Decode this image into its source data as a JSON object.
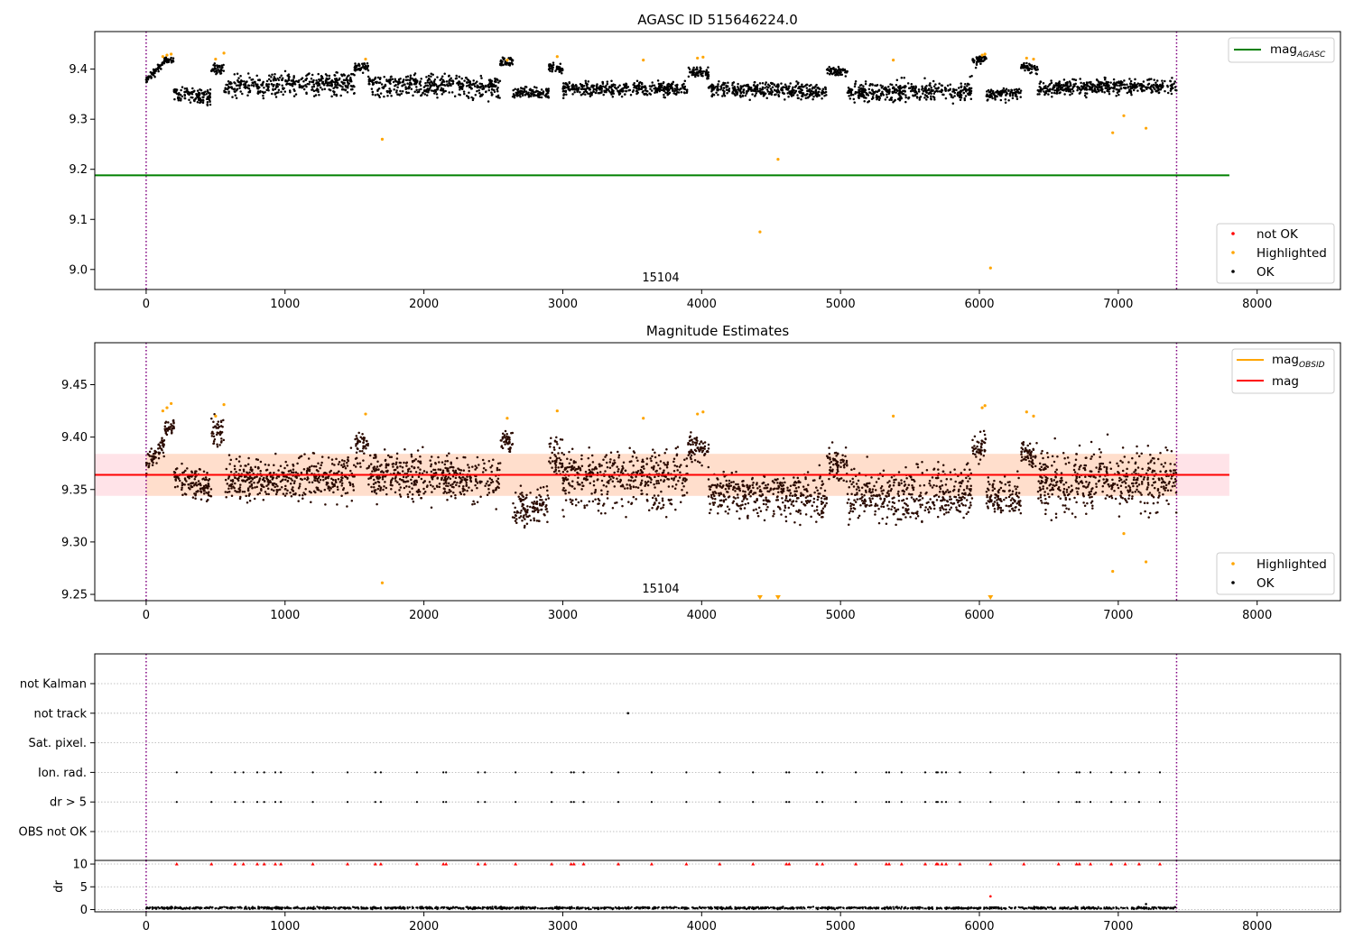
{
  "chart_data": [
    {
      "id": "agasc",
      "type": "scatter",
      "title": "AGASC ID 515646224.0",
      "xlabel": "",
      "ylabel": "",
      "xlim": [
        -370,
        8600
      ],
      "ylim": [
        8.96,
        9.475
      ],
      "x_ticks": [
        0,
        1000,
        2000,
        3000,
        4000,
        5000,
        6000,
        7000,
        8000
      ],
      "y_ticks": [
        9.0,
        9.1,
        9.2,
        9.3,
        9.4
      ],
      "y_tick_labels": [
        "9.0",
        "9.1",
        "9.2",
        "9.3",
        "9.4"
      ],
      "vlines": [
        0,
        7420
      ],
      "hline": {
        "name": "mag",
        "sub": "AGASC",
        "y": 9.188,
        "x_range": [
          -370,
          7800
        ],
        "color": "#008000"
      },
      "annotation": {
        "text": "15104",
        "x": 3700,
        "y": 8.972
      },
      "legend_top": {
        "position": "top-right",
        "entries": [
          {
            "label": "mag",
            "sub": "AGASC",
            "color": "#008000",
            "marker": "line"
          }
        ]
      },
      "legend_bottom": {
        "position": "bottom-right",
        "entries": [
          {
            "label": "not OK",
            "color": "#ff0000",
            "marker": "dot"
          },
          {
            "label": "Highlighted",
            "color": "#ffa500",
            "marker": "dot"
          },
          {
            "label": "OK",
            "color": "#000000",
            "marker": "dot"
          }
        ]
      },
      "segments": [
        {
          "x": [
            0,
            130
          ],
          "y": [
            9.375,
            9.41
          ],
          "spread": 0.02
        },
        {
          "x": [
            130,
            200
          ],
          "y": [
            9.42,
            9.42
          ],
          "spread": 0.01
        },
        {
          "x": [
            200,
            470
          ],
          "y": [
            9.36,
            9.35
          ],
          "spread": 0.02
        },
        {
          "x": [
            470,
            560
          ],
          "y": [
            9.405,
            9.405
          ],
          "spread": 0.02
        },
        {
          "x": [
            560,
            1500
          ],
          "y": [
            9.365,
            9.37
          ],
          "spread": 0.025
        },
        {
          "x": [
            1500,
            1600
          ],
          "y": [
            9.405,
            9.405
          ],
          "spread": 0.015
        },
        {
          "x": [
            1600,
            2550
          ],
          "y": [
            9.37,
            9.365
          ],
          "spread": 0.025
        },
        {
          "x": [
            2550,
            2640
          ],
          "y": [
            9.405,
            9.405
          ],
          "spread": 0.015
        },
        {
          "x": [
            2640,
            2900
          ],
          "y": [
            9.35,
            9.35
          ],
          "spread": 0.02
        },
        {
          "x": [
            2900,
            3000
          ],
          "y": [
            9.395,
            9.39
          ],
          "spread": 0.02
        },
        {
          "x": [
            3000,
            3900
          ],
          "y": [
            9.36,
            9.36
          ],
          "spread": 0.025
        },
        {
          "x": [
            3900,
            4050
          ],
          "y": [
            9.395,
            9.39
          ],
          "spread": 0.02
        },
        {
          "x": [
            4050,
            4900
          ],
          "y": [
            9.36,
            9.355
          ],
          "spread": 0.025
        },
        {
          "x": [
            4900,
            5050
          ],
          "y": [
            9.395,
            9.39
          ],
          "spread": 0.02
        },
        {
          "x": [
            5050,
            5950
          ],
          "y": [
            9.355,
            9.36
          ],
          "spread": 0.025
        },
        {
          "x": [
            5950,
            6050
          ],
          "y": [
            9.405,
            9.41
          ],
          "spread": 0.02
        },
        {
          "x": [
            6050,
            6300
          ],
          "y": [
            9.345,
            9.35
          ],
          "spread": 0.02
        },
        {
          "x": [
            6300,
            6420
          ],
          "y": [
            9.405,
            9.4
          ],
          "spread": 0.02
        },
        {
          "x": [
            6420,
            7420
          ],
          "y": [
            9.36,
            9.365
          ],
          "spread": 0.025
        }
      ],
      "highlighted_points": [
        [
          1700,
          9.26
        ],
        [
          4550,
          9.22
        ],
        [
          4420,
          9.075
        ],
        [
          6080,
          9.003
        ],
        [
          6960,
          9.273
        ],
        [
          7040,
          9.307
        ],
        [
          7200,
          9.282
        ],
        [
          120,
          9.425
        ],
        [
          150,
          9.428
        ],
        [
          180,
          9.43
        ],
        [
          500,
          9.42
        ],
        [
          560,
          9.432
        ],
        [
          1580,
          9.42
        ],
        [
          2600,
          9.418
        ],
        [
          2960,
          9.425
        ],
        [
          3580,
          9.418
        ],
        [
          3970,
          9.422
        ],
        [
          4010,
          9.424
        ],
        [
          5380,
          9.418
        ],
        [
          6020,
          9.428
        ],
        [
          6040,
          9.43
        ],
        [
          6340,
          9.422
        ],
        [
          6390,
          9.42
        ]
      ]
    },
    {
      "id": "mag_estimates",
      "type": "scatter",
      "title": "Magnitude Estimates",
      "xlabel": "",
      "ylabel": "",
      "xlim": [
        -370,
        8600
      ],
      "ylim": [
        9.244,
        9.49
      ],
      "x_ticks": [
        0,
        1000,
        2000,
        3000,
        4000,
        5000,
        6000,
        7000,
        8000
      ],
      "y_ticks": [
        9.25,
        9.3,
        9.35,
        9.4,
        9.45
      ],
      "y_tick_labels": [
        "9.25",
        "9.30",
        "9.35",
        "9.40",
        "9.45"
      ],
      "vlines": [
        0,
        7420
      ],
      "mag_line": {
        "name": "mag",
        "y": 9.364,
        "band": [
          9.344,
          9.384
        ],
        "x_range": [
          -370,
          7800
        ],
        "color": "#ff0000",
        "band_color": "#ffc0cb"
      },
      "obsid_line": {
        "name": "mag",
        "sub": "OBSID",
        "y": 9.364,
        "band": [
          9.344,
          9.384
        ],
        "x_range": [
          0,
          7420
        ],
        "color": "#ffa500",
        "band_color": "#ffdab9"
      },
      "annotation": {
        "text": "15104",
        "x": 3700,
        "y": 9.254
      },
      "legend_top": {
        "position": "top-right",
        "entries": [
          {
            "label": "mag",
            "sub": "OBSID",
            "color": "#ffa500",
            "marker": "line"
          },
          {
            "label": "mag",
            "sub": "",
            "color": "#ff0000",
            "marker": "line"
          }
        ]
      },
      "legend_bottom": {
        "position": "bottom-right",
        "entries": [
          {
            "label": "Highlighted",
            "color": "#ffa500",
            "marker": "dot"
          },
          {
            "label": "OK",
            "color": "#000000",
            "marker": "dot"
          }
        ]
      },
      "segments": [
        {
          "x": [
            0,
            130
          ],
          "y": [
            9.375,
            9.395
          ],
          "spread": 0.025
        },
        {
          "x": [
            130,
            200
          ],
          "y": [
            9.41,
            9.415
          ],
          "spread": 0.015
        },
        {
          "x": [
            200,
            470
          ],
          "y": [
            9.36,
            9.35
          ],
          "spread": 0.025
        },
        {
          "x": [
            470,
            560
          ],
          "y": [
            9.4,
            9.4
          ],
          "spread": 0.025
        },
        {
          "x": [
            560,
            1500
          ],
          "y": [
            9.36,
            9.365
          ],
          "spread": 0.035
        },
        {
          "x": [
            1500,
            1600
          ],
          "y": [
            9.395,
            9.395
          ],
          "spread": 0.025
        },
        {
          "x": [
            1600,
            2550
          ],
          "y": [
            9.365,
            9.36
          ],
          "spread": 0.035
        },
        {
          "x": [
            2550,
            2640
          ],
          "y": [
            9.395,
            9.395
          ],
          "spread": 0.025
        },
        {
          "x": [
            2640,
            2900
          ],
          "y": [
            9.345,
            9.345
          ],
          "spread": 0.03
        },
        {
          "x": [
            2900,
            3000
          ],
          "y": [
            9.385,
            9.38
          ],
          "spread": 0.03
        },
        {
          "x": [
            3000,
            3900
          ],
          "y": [
            9.355,
            9.355
          ],
          "spread": 0.035
        },
        {
          "x": [
            3900,
            4050
          ],
          "y": [
            9.39,
            9.385
          ],
          "spread": 0.025
        },
        {
          "x": [
            4050,
            4900
          ],
          "y": [
            9.355,
            9.35
          ],
          "spread": 0.035
        },
        {
          "x": [
            4900,
            5050
          ],
          "y": [
            9.39,
            9.385
          ],
          "spread": 0.03
        },
        {
          "x": [
            5050,
            5950
          ],
          "y": [
            9.35,
            9.355
          ],
          "spread": 0.035
        },
        {
          "x": [
            5950,
            6050
          ],
          "y": [
            9.4,
            9.405
          ],
          "spread": 0.025
        },
        {
          "x": [
            6050,
            6300
          ],
          "y": [
            9.345,
            9.345
          ],
          "spread": 0.03
        },
        {
          "x": [
            6300,
            6420
          ],
          "y": [
            9.4,
            9.395
          ],
          "spread": 0.025
        },
        {
          "x": [
            6420,
            7420
          ],
          "y": [
            9.355,
            9.36
          ],
          "spread": 0.035
        }
      ],
      "highlighted_points": [
        [
          1700,
          9.261
        ],
        [
          6960,
          9.272
        ],
        [
          7040,
          9.308
        ],
        [
          7200,
          9.281
        ],
        [
          120,
          9.425
        ],
        [
          150,
          9.428
        ],
        [
          180,
          9.432
        ],
        [
          500,
          9.42
        ],
        [
          560,
          9.431
        ],
        [
          1580,
          9.422
        ],
        [
          2600,
          9.418
        ],
        [
          2960,
          9.425
        ],
        [
          3580,
          9.418
        ],
        [
          3970,
          9.422
        ],
        [
          4010,
          9.424
        ],
        [
          5380,
          9.42
        ],
        [
          6020,
          9.428
        ],
        [
          6040,
          9.43
        ],
        [
          6340,
          9.424
        ],
        [
          6390,
          9.42
        ]
      ],
      "offscale_markers": [
        4420,
        4550,
        6080
      ]
    },
    {
      "id": "flags",
      "type": "scatter",
      "title": "",
      "xlabel": "",
      "ylabel": "",
      "xlim": [
        -370,
        8600
      ],
      "categories": [
        "not Kalman",
        "not track",
        "Sat. pixel.",
        "Ion. rad.",
        "dr > 5",
        "OBS not OK"
      ],
      "vlines": [
        0,
        7420
      ],
      "flag_x": [
        220,
        470,
        640,
        700,
        800,
        850,
        930,
        970,
        1200,
        1450,
        1650,
        1690,
        1950,
        2140,
        2160,
        2390,
        2440,
        2660,
        2920,
        3060,
        3080,
        3150,
        3400,
        3640,
        3890,
        4130,
        4370,
        4610,
        4630,
        4830,
        4870,
        5110,
        5330,
        5350,
        5440,
        5610,
        5690,
        5700,
        5730,
        5760,
        5860,
        6080,
        6320,
        6570,
        6700,
        6720,
        6800,
        6950,
        7050,
        7150,
        7300
      ],
      "not_track_x": [
        3470
      ]
    },
    {
      "id": "dr",
      "type": "scatter",
      "title": "",
      "xlabel": "",
      "ylabel": "dr",
      "xlim": [
        -370,
        8600
      ],
      "ylim": [
        -0.5,
        10.8
      ],
      "y_ticks": [
        0,
        5,
        10
      ],
      "y_tick_labels": [
        "0",
        "5",
        "10"
      ],
      "x_ticks": [
        0,
        1000,
        2000,
        3000,
        4000,
        5000,
        6000,
        7000,
        8000
      ],
      "vlines": [
        0,
        7420
      ],
      "baseline": {
        "x_range": [
          0,
          7420
        ],
        "y": 0.35,
        "spread": 0.35
      },
      "capped_y": 10,
      "outlier_points": [
        [
          6080,
          2.9
        ],
        [
          7200,
          1.2
        ]
      ]
    }
  ]
}
